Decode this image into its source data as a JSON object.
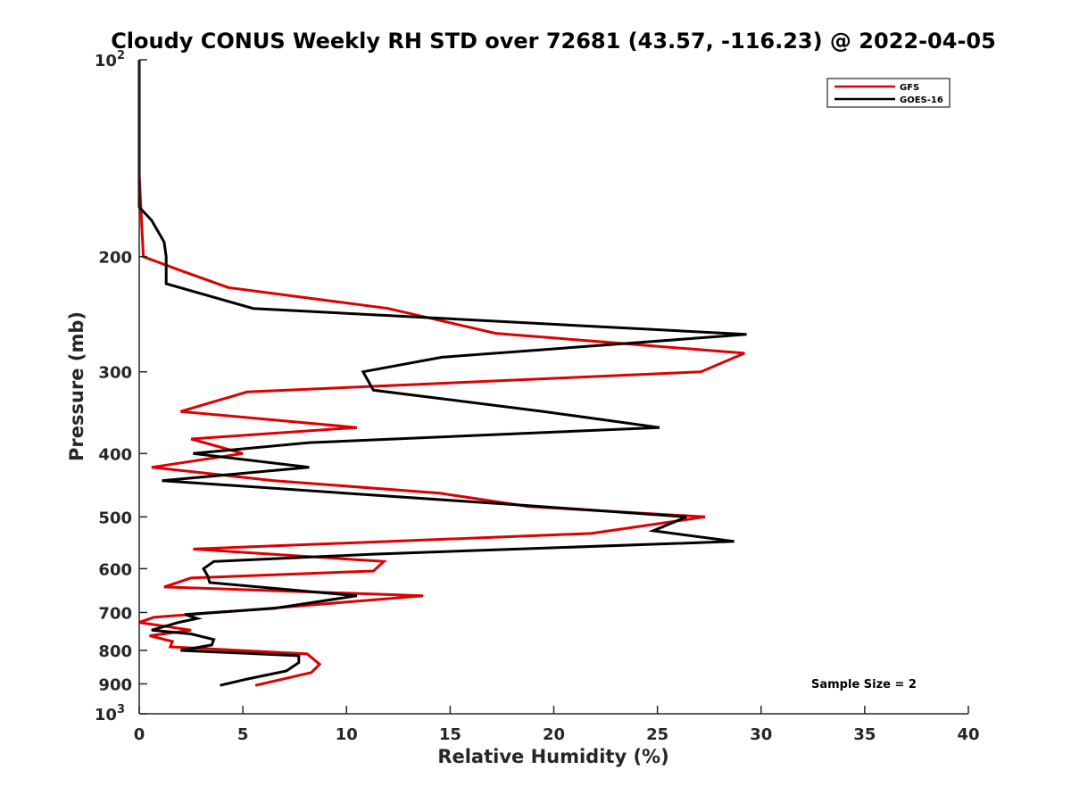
{
  "chart_data": {
    "type": "line",
    "title": "Cloudy CONUS Weekly RH STD over 72681 (43.57, -116.23) @ 2022-04-05",
    "xlabel": "Relative Humidity (%)",
    "ylabel": "Pressure (mb)",
    "xlim": [
      0,
      40
    ],
    "ylim": [
      100,
      1000
    ],
    "y_scale": "log",
    "y_reversed": true,
    "x_ticks": [
      0,
      5,
      10,
      15,
      20,
      25,
      30,
      35,
      40
    ],
    "y_ticks": [
      {
        "value": 100,
        "label": "10",
        "exp": "2"
      },
      {
        "value": 200,
        "label": "200"
      },
      {
        "value": 300,
        "label": "300"
      },
      {
        "value": 400,
        "label": "400"
      },
      {
        "value": 500,
        "label": "500"
      },
      {
        "value": 600,
        "label": "600"
      },
      {
        "value": 700,
        "label": "700"
      },
      {
        "value": 800,
        "label": "800"
      },
      {
        "value": 900,
        "label": "900"
      },
      {
        "value": 1000,
        "label": "10",
        "exp": "3"
      }
    ],
    "grid": false,
    "legend_position": "top-right",
    "annotation": "Sample Size = 2",
    "series": [
      {
        "name": "GFS",
        "color": "#dd0000",
        "points": [
          [
            0.0,
            100
          ],
          [
            0.0,
            150
          ],
          [
            0.2,
            200
          ],
          [
            2.0,
            210
          ],
          [
            4.3,
            223
          ],
          [
            12.0,
            240
          ],
          [
            17.2,
            262
          ],
          [
            29.2,
            281
          ],
          [
            27.1,
            300
          ],
          [
            5.2,
            322
          ],
          [
            2.0,
            345
          ],
          [
            10.5,
            365
          ],
          [
            2.5,
            380
          ],
          [
            5.0,
            400
          ],
          [
            0.6,
            420
          ],
          [
            6.5,
            440
          ],
          [
            14.5,
            460
          ],
          [
            18.8,
            482
          ],
          [
            27.3,
            500
          ],
          [
            21.8,
            530
          ],
          [
            2.6,
            560
          ],
          [
            11.8,
            585
          ],
          [
            11.3,
            605
          ],
          [
            2.5,
            620
          ],
          [
            1.2,
            640
          ],
          [
            13.7,
            660
          ],
          [
            6.3,
            690
          ],
          [
            0.7,
            712
          ],
          [
            0.0,
            725
          ],
          [
            2.5,
            745
          ],
          [
            0.5,
            760
          ],
          [
            1.6,
            775
          ],
          [
            1.5,
            790
          ],
          [
            8.1,
            810
          ],
          [
            8.7,
            840
          ],
          [
            8.3,
            865
          ],
          [
            5.6,
            905
          ]
        ]
      },
      {
        "name": "GOES-16",
        "color": "#000000",
        "points": [
          [
            0.0,
            100
          ],
          [
            0.0,
            168
          ],
          [
            0.6,
            176
          ],
          [
            1.2,
            190
          ],
          [
            1.3,
            200
          ],
          [
            1.3,
            220
          ],
          [
            5.5,
            240
          ],
          [
            29.3,
            263
          ],
          [
            14.6,
            285
          ],
          [
            10.8,
            300
          ],
          [
            11.3,
            320
          ],
          [
            19.5,
            345
          ],
          [
            25.1,
            365
          ],
          [
            8.2,
            385
          ],
          [
            2.6,
            400
          ],
          [
            8.2,
            420
          ],
          [
            1.1,
            440
          ],
          [
            18.5,
            480
          ],
          [
            26.4,
            500
          ],
          [
            24.8,
            525
          ],
          [
            28.7,
            545
          ],
          [
            11.3,
            570
          ],
          [
            3.6,
            585
          ],
          [
            3.1,
            600
          ],
          [
            3.3,
            615
          ],
          [
            3.4,
            630
          ],
          [
            10.5,
            660
          ],
          [
            6.5,
            690
          ],
          [
            2.2,
            705
          ],
          [
            2.8,
            715
          ],
          [
            1.9,
            725
          ],
          [
            0.6,
            745
          ],
          [
            2.5,
            755
          ],
          [
            3.6,
            770
          ],
          [
            3.5,
            785
          ],
          [
            2.0,
            800
          ],
          [
            7.7,
            815
          ],
          [
            7.7,
            835
          ],
          [
            7.1,
            860
          ],
          [
            5.2,
            885
          ],
          [
            3.9,
            905
          ]
        ]
      }
    ]
  }
}
